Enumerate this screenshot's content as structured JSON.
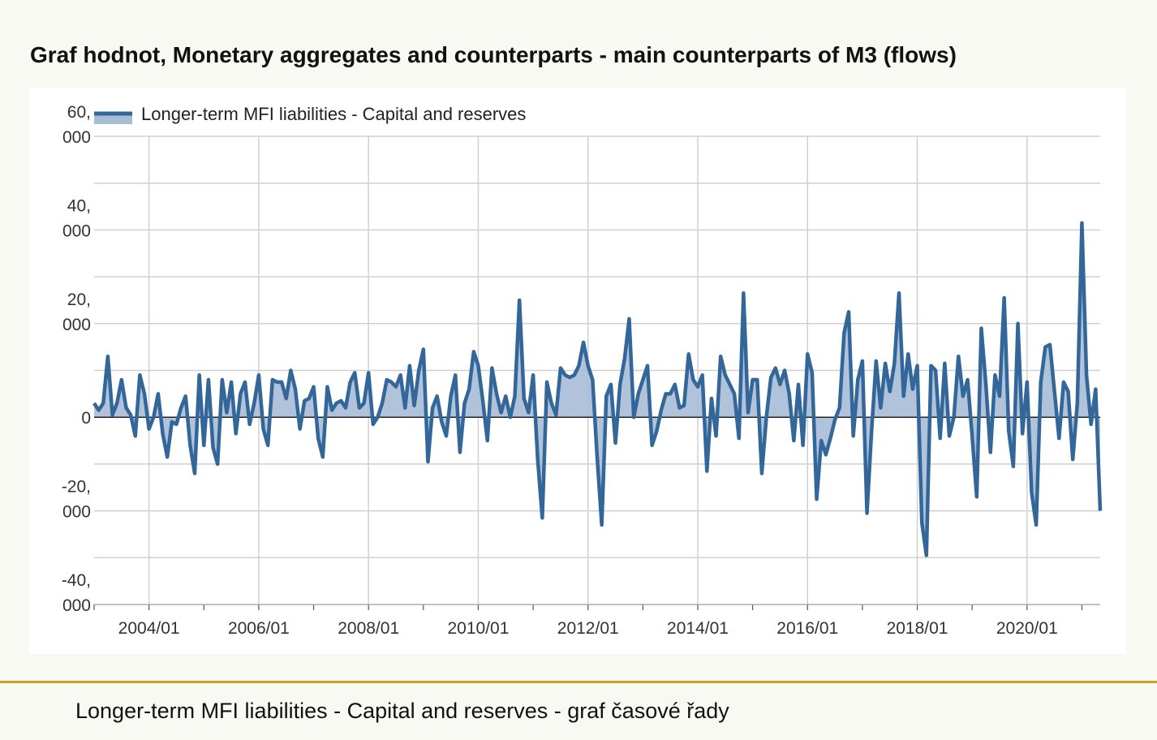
{
  "page": {
    "title": "Graf hodnot, Monetary aggregates and counterparts - main counterparts of M3 (flows)",
    "caption": "Longer-term MFI liabilities - Capital and reserves - graf časové řady"
  },
  "colors": {
    "line": "#336699",
    "area_fill": "#a8bcd6",
    "grid": "#d0d0d0",
    "zero_line": "#222222",
    "divider": "#c9a227"
  },
  "chart_data": {
    "type": "area",
    "title": "Graf hodnot, Monetary aggregates and counterparts - main counterparts of M3 (flows)",
    "xlabel": "",
    "ylabel": "",
    "ylim": [
      -40000,
      60000
    ],
    "y_ticks": [
      60000,
      40000,
      20000,
      0,
      -20000,
      -40000
    ],
    "y_tick_labels": [
      [
        "60,",
        "000"
      ],
      [
        "40,",
        "000"
      ],
      [
        "20,",
        "000"
      ],
      [
        "0"
      ],
      [
        "-20,",
        "000"
      ],
      [
        "-40,",
        "000"
      ]
    ],
    "x_tick_labels": [
      "2004/01",
      "2006/01",
      "2008/01",
      "2010/01",
      "2012/01",
      "2014/01",
      "2016/01",
      "2018/01",
      "2020/01"
    ],
    "x_start": "2003-01",
    "grid": true,
    "legend": "top-left",
    "series": [
      {
        "name": "Longer-term MFI liabilities - Capital and reserves",
        "values": [
          3000,
          1500,
          3000,
          13000,
          500,
          3000,
          8000,
          2000,
          500,
          -4000,
          9000,
          5000,
          -2500,
          0,
          5000,
          -3500,
          -8500,
          -1000,
          -1500,
          2000,
          4500,
          -6000,
          -12000,
          9000,
          -6000,
          8000,
          -6500,
          -10000,
          8000,
          1000,
          7500,
          -3500,
          5000,
          7500,
          -1500,
          3000,
          9000,
          -2500,
          -6000,
          8000,
          7500,
          7500,
          4000,
          10000,
          6000,
          -2500,
          3500,
          4000,
          6500,
          -4500,
          -8500,
          6500,
          1500,
          3000,
          3500,
          2000,
          7500,
          9500,
          2000,
          3000,
          9500,
          -1500,
          0,
          3000,
          8000,
          7500,
          6500,
          9000,
          2000,
          11000,
          2500,
          10000,
          14500,
          -9500,
          2000,
          4500,
          -1000,
          -4000,
          4500,
          9000,
          -7500,
          3000,
          6000,
          14000,
          11000,
          3500,
          -5000,
          10500,
          5000,
          1000,
          4500,
          0,
          4500,
          25000,
          4000,
          1000,
          9000,
          -9000,
          -21500,
          7500,
          3000,
          500,
          10500,
          9000,
          8500,
          9000,
          11000,
          16000,
          11000,
          8000,
          -8500,
          -23000,
          4500,
          7000,
          -5500,
          7000,
          12500,
          21000,
          0,
          5000,
          8000,
          11000,
          -6000,
          -3000,
          1500,
          5000,
          5000,
          7000,
          2000,
          2500,
          13500,
          8000,
          6500,
          9000,
          -11500,
          4000,
          -4000,
          13000,
          9000,
          7000,
          5000,
          -4500,
          26500,
          1000,
          8000,
          8000,
          -12000,
          0,
          8500,
          10500,
          7000,
          10000,
          5000,
          -5000,
          7000,
          -6000,
          13500,
          9500,
          -17500,
          -5000,
          -8000,
          -4500,
          -500,
          2000,
          18000,
          22500,
          -4000,
          8000,
          12000,
          -20500,
          -3000,
          12000,
          2000,
          11500,
          5500,
          11500,
          26500,
          4500,
          13500,
          6000,
          11000,
          -22500,
          -29500,
          11000,
          10000,
          -4500,
          11500,
          -4000,
          0,
          13000,
          4500,
          8000,
          -4000,
          -17000,
          19000,
          7000,
          -7500,
          9000,
          4500,
          25500,
          -3000,
          -10500,
          20000,
          -3500,
          7500,
          -16000,
          -23000,
          7500,
          15000,
          15500,
          5500,
          -4500,
          7500,
          5500,
          -9000,
          3000,
          41500,
          9000,
          -1500,
          6000,
          -20000
        ]
      }
    ]
  }
}
